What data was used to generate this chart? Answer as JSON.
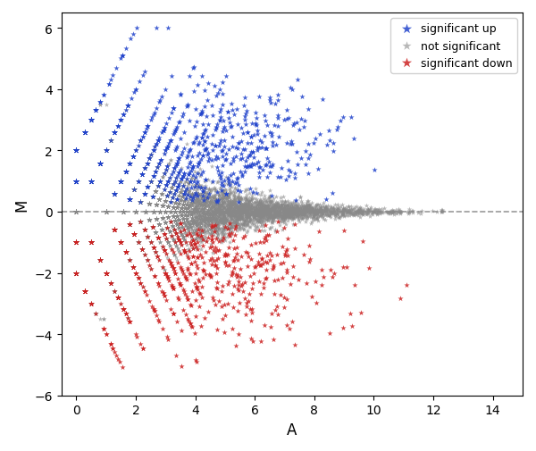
{
  "title": "",
  "xlabel": "A",
  "ylabel": "M",
  "xlim": [
    -0.5,
    15
  ],
  "ylim": [
    -5.8,
    6.5
  ],
  "xticks": [
    0,
    2,
    4,
    6,
    8,
    10,
    12,
    14
  ],
  "yticks": [
    -6,
    -4,
    -2,
    0,
    2,
    4,
    6
  ],
  "hline_y": 0,
  "hline_color": "gray",
  "hline_style": "--",
  "hline_alpha": 0.8,
  "marker": "*",
  "legend_labels": [
    "significant up",
    "not significant",
    "significant down"
  ],
  "legend_colors": [
    "#2244cc",
    "#888888",
    "#cc2222"
  ],
  "seed": 12345
}
